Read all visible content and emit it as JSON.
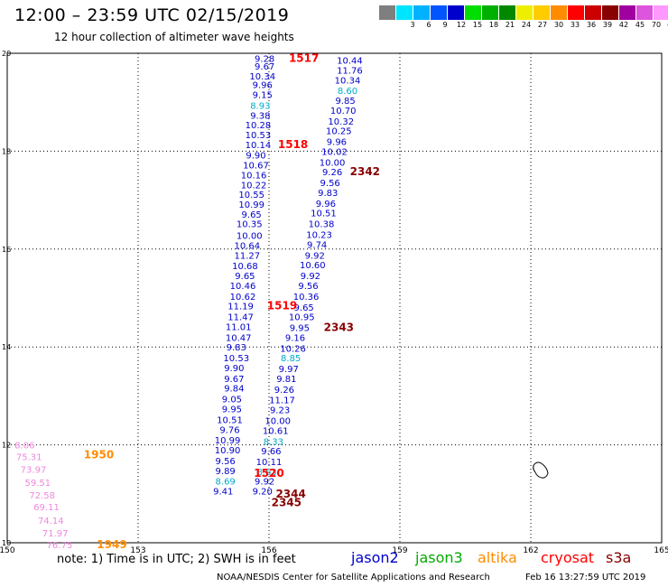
{
  "header": {
    "title": "12:00 – 23:59 UTC 02/15/2019",
    "subtitle": "12 hour collection of altimeter wave heights"
  },
  "legend": {
    "swatches": [
      {
        "color": "#7f7f7f",
        "label": ""
      },
      {
        "color": "#00e5ff",
        "label": "3"
      },
      {
        "color": "#00b2ff",
        "label": "6"
      },
      {
        "color": "#0055ff",
        "label": "9"
      },
      {
        "color": "#0000cc",
        "label": "12"
      },
      {
        "color": "#00dd00",
        "label": "15"
      },
      {
        "color": "#00b000",
        "label": "18"
      },
      {
        "color": "#008800",
        "label": "21"
      },
      {
        "color": "#eeee00",
        "label": "24"
      },
      {
        "color": "#ffcc00",
        "label": "27"
      },
      {
        "color": "#ff8c00",
        "label": "30"
      },
      {
        "color": "#ff0000",
        "label": "33"
      },
      {
        "color": "#cc0000",
        "label": "36"
      },
      {
        "color": "#880000",
        "label": "39"
      },
      {
        "color": "#a000a0",
        "label": "42"
      },
      {
        "color": "#dd55dd",
        "label": "45"
      },
      {
        "color": "#ff99ff",
        "label": "70"
      },
      {
        "color": "#000000",
        "label": "(ft)"
      }
    ]
  },
  "footer": {
    "note": "note:  1) Time is in UTC;  2) SWH is in feet",
    "credit": "NOAA/NESDIS Center for Satellite Applications and Research",
    "timestamp": "Feb 16 13:27:59 UTC 2019"
  },
  "satellites": [
    {
      "name": "jason2",
      "color": "#0000cc"
    },
    {
      "name": "jason3",
      "color": "#00aa00"
    },
    {
      "name": "altika",
      "color": "#ff8c00"
    },
    {
      "name": "cryosat",
      "color": "#ff0000"
    },
    {
      "name": "s3a",
      "color": "#880000"
    }
  ],
  "chart_data": {
    "type": "scatter",
    "xlim": [
      150,
      165
    ],
    "ylim": [
      10,
      20
    ],
    "xticks": [
      "150",
      "153",
      "156",
      "159",
      "162",
      "165"
    ],
    "yticks": [
      "10",
      "12",
      "14",
      "16",
      "18",
      "20"
    ],
    "grid": true,
    "colors": {
      "jason2": "#0000cc",
      "jason3_light": "#00aacc",
      "cryosat": "#ff0000",
      "s3a": "#880000",
      "altika": "#ff8c00",
      "pink": "#ee88dd"
    },
    "labels": [
      {
        "t": "9.28",
        "x": 155.9,
        "y": 19.9,
        "c": "jason2"
      },
      {
        "t": "9.67",
        "x": 155.9,
        "y": 19.74,
        "c": "jason2"
      },
      {
        "t": "10.34",
        "x": 155.85,
        "y": 19.54,
        "c": "jason2"
      },
      {
        "t": "9.96",
        "x": 155.85,
        "y": 19.36,
        "c": "jason2"
      },
      {
        "t": "9.15",
        "x": 155.85,
        "y": 19.16,
        "c": "jason2"
      },
      {
        "t": "8.93",
        "x": 155.8,
        "y": 18.94,
        "c": "jason3_light"
      },
      {
        "t": "9.38",
        "x": 155.8,
        "y": 18.74,
        "c": "jason2"
      },
      {
        "t": "10.28",
        "x": 155.75,
        "y": 18.54,
        "c": "jason2"
      },
      {
        "t": "10.53",
        "x": 155.75,
        "y": 18.34,
        "c": "jason2"
      },
      {
        "t": "10.14",
        "x": 155.75,
        "y": 18.14,
        "c": "jason2"
      },
      {
        "t": "9.90",
        "x": 155.7,
        "y": 17.92,
        "c": "jason2"
      },
      {
        "t": "10.67",
        "x": 155.7,
        "y": 17.72,
        "c": "jason2"
      },
      {
        "t": "10.16",
        "x": 155.65,
        "y": 17.52,
        "c": "jason2"
      },
      {
        "t": "10.22",
        "x": 155.65,
        "y": 17.32,
        "c": "jason2"
      },
      {
        "t": "10.55",
        "x": 155.6,
        "y": 17.12,
        "c": "jason2"
      },
      {
        "t": "10.99",
        "x": 155.6,
        "y": 16.92,
        "c": "jason2"
      },
      {
        "t": "9.65",
        "x": 155.6,
        "y": 16.72,
        "c": "jason2"
      },
      {
        "t": "10.35",
        "x": 155.55,
        "y": 16.52,
        "c": "jason2"
      },
      {
        "t": "10.00",
        "x": 155.55,
        "y": 16.28,
        "c": "jason2"
      },
      {
        "t": "10.64",
        "x": 155.5,
        "y": 16.08,
        "c": "jason2"
      },
      {
        "t": "11.27",
        "x": 155.5,
        "y": 15.88,
        "c": "jason2"
      },
      {
        "t": "10.68",
        "x": 155.45,
        "y": 15.66,
        "c": "jason2"
      },
      {
        "t": "9.65",
        "x": 155.45,
        "y": 15.46,
        "c": "jason2"
      },
      {
        "t": "10.46",
        "x": 155.4,
        "y": 15.26,
        "c": "jason2"
      },
      {
        "t": "10.62",
        "x": 155.4,
        "y": 15.04,
        "c": "jason2"
      },
      {
        "t": "11.19",
        "x": 155.35,
        "y": 14.84,
        "c": "jason2"
      },
      {
        "t": "11.47",
        "x": 155.35,
        "y": 14.62,
        "c": "jason2"
      },
      {
        "t": "11.01",
        "x": 155.3,
        "y": 14.42,
        "c": "jason2"
      },
      {
        "t": "10.47",
        "x": 155.3,
        "y": 14.2,
        "c": "jason2"
      },
      {
        "t": "9.83",
        "x": 155.25,
        "y": 14.0,
        "c": "jason2"
      },
      {
        "t": "10.53",
        "x": 155.25,
        "y": 13.78,
        "c": "jason2"
      },
      {
        "t": "9.90",
        "x": 155.2,
        "y": 13.58,
        "c": "jason2"
      },
      {
        "t": "9.67",
        "x": 155.2,
        "y": 13.36,
        "c": "jason2"
      },
      {
        "t": "9.84",
        "x": 155.2,
        "y": 13.16,
        "c": "jason2"
      },
      {
        "t": "9.05",
        "x": 155.15,
        "y": 12.94,
        "c": "jason2"
      },
      {
        "t": "9.95",
        "x": 155.15,
        "y": 12.74,
        "c": "jason2"
      },
      {
        "t": "10.51",
        "x": 155.1,
        "y": 12.52,
        "c": "jason2"
      },
      {
        "t": "9.76",
        "x": 155.1,
        "y": 12.32,
        "c": "jason2"
      },
      {
        "t": "10.99",
        "x": 155.05,
        "y": 12.1,
        "c": "jason2"
      },
      {
        "t": "10.90",
        "x": 155.05,
        "y": 11.9,
        "c": "jason2"
      },
      {
        "t": "9.56",
        "x": 155.0,
        "y": 11.68,
        "c": "jason2"
      },
      {
        "t": "9.89",
        "x": 155.0,
        "y": 11.48,
        "c": "jason2"
      },
      {
        "t": "8.69",
        "x": 155.0,
        "y": 11.26,
        "c": "jason3_light"
      },
      {
        "t": "9.41",
        "x": 154.95,
        "y": 11.06,
        "c": "jason2"
      },
      {
        "t": "10.44",
        "x": 157.85,
        "y": 19.86,
        "c": "jason2"
      },
      {
        "t": "11.76",
        "x": 157.85,
        "y": 19.66,
        "c": "jason2"
      },
      {
        "t": "10.34",
        "x": 157.8,
        "y": 19.46,
        "c": "jason2"
      },
      {
        "t": "8.60",
        "x": 157.8,
        "y": 19.24,
        "c": "jason3_light"
      },
      {
        "t": "9.85",
        "x": 157.75,
        "y": 19.04,
        "c": "jason2"
      },
      {
        "t": "10.70",
        "x": 157.7,
        "y": 18.84,
        "c": "jason2"
      },
      {
        "t": "10.32",
        "x": 157.65,
        "y": 18.62,
        "c": "jason2"
      },
      {
        "t": "10.25",
        "x": 157.6,
        "y": 18.42,
        "c": "jason2"
      },
      {
        "t": "9.96",
        "x": 157.55,
        "y": 18.2,
        "c": "jason2"
      },
      {
        "t": "10.02",
        "x": 157.5,
        "y": 18.0,
        "c": "jason2"
      },
      {
        "t": "10.00",
        "x": 157.45,
        "y": 17.78,
        "c": "jason2"
      },
      {
        "t": "9.26",
        "x": 157.45,
        "y": 17.58,
        "c": "jason2"
      },
      {
        "t": "9.56",
        "x": 157.4,
        "y": 17.36,
        "c": "jason2"
      },
      {
        "t": "9.83",
        "x": 157.35,
        "y": 17.16,
        "c": "jason2"
      },
      {
        "t": "9.96",
        "x": 157.3,
        "y": 16.94,
        "c": "jason2"
      },
      {
        "t": "10.51",
        "x": 157.25,
        "y": 16.74,
        "c": "jason2"
      },
      {
        "t": "10.38",
        "x": 157.2,
        "y": 16.52,
        "c": "jason2"
      },
      {
        "t": "10.23",
        "x": 157.15,
        "y": 16.3,
        "c": "jason2"
      },
      {
        "t": "9.74",
        "x": 157.1,
        "y": 16.1,
        "c": "jason2"
      },
      {
        "t": "9.92",
        "x": 157.05,
        "y": 15.88,
        "c": "jason2"
      },
      {
        "t": "10.60",
        "x": 157.0,
        "y": 15.68,
        "c": "jason2"
      },
      {
        "t": "9.92",
        "x": 156.95,
        "y": 15.46,
        "c": "jason2"
      },
      {
        "t": "9.56",
        "x": 156.9,
        "y": 15.26,
        "c": "jason2"
      },
      {
        "t": "10.36",
        "x": 156.85,
        "y": 15.04,
        "c": "jason2"
      },
      {
        "t": "9.65",
        "x": 156.8,
        "y": 14.82,
        "c": "jason2"
      },
      {
        "t": "10.95",
        "x": 156.75,
        "y": 14.62,
        "c": "jason2"
      },
      {
        "t": "9.95",
        "x": 156.7,
        "y": 14.4,
        "c": "jason2"
      },
      {
        "t": "9.16",
        "x": 156.6,
        "y": 14.2,
        "c": "jason2"
      },
      {
        "t": "10.26",
        "x": 156.55,
        "y": 13.98,
        "c": "jason2"
      },
      {
        "t": "8.85",
        "x": 156.5,
        "y": 13.78,
        "c": "jason3_light"
      },
      {
        "t": "9.97",
        "x": 156.45,
        "y": 13.56,
        "c": "jason2"
      },
      {
        "t": "9.81",
        "x": 156.4,
        "y": 13.36,
        "c": "jason2"
      },
      {
        "t": "9.26",
        "x": 156.35,
        "y": 13.14,
        "c": "jason2"
      },
      {
        "t": "11.17",
        "x": 156.3,
        "y": 12.92,
        "c": "jason2"
      },
      {
        "t": "9.23",
        "x": 156.25,
        "y": 12.72,
        "c": "jason2"
      },
      {
        "t": "10.00",
        "x": 156.2,
        "y": 12.5,
        "c": "jason2"
      },
      {
        "t": "10.61",
        "x": 156.15,
        "y": 12.3,
        "c": "jason2"
      },
      {
        "t": "8.33",
        "x": 156.1,
        "y": 12.08,
        "c": "jason3_light"
      },
      {
        "t": "9.66",
        "x": 156.05,
        "y": 11.88,
        "c": "jason2"
      },
      {
        "t": "10.11",
        "x": 156.0,
        "y": 11.66,
        "c": "jason2"
      },
      {
        "t": "8.63",
        "x": 155.95,
        "y": 11.46,
        "c": "jason3_light"
      },
      {
        "t": "9.92",
        "x": 155.9,
        "y": 11.26,
        "c": "jason2"
      },
      {
        "t": "9.20",
        "x": 155.85,
        "y": 11.06,
        "c": "jason2"
      },
      {
        "t": "1517",
        "x": 156.8,
        "y": 19.9,
        "c": "cryosat",
        "big": true
      },
      {
        "t": "1518",
        "x": 156.55,
        "y": 18.14,
        "c": "cryosat",
        "big": true
      },
      {
        "t": "1519",
        "x": 156.3,
        "y": 14.84,
        "c": "cryosat",
        "big": true
      },
      {
        "t": "1520",
        "x": 156.0,
        "y": 11.42,
        "c": "cryosat",
        "big": true
      },
      {
        "t": "2342",
        "x": 158.2,
        "y": 17.58,
        "c": "s3a",
        "big": true
      },
      {
        "t": "2343",
        "x": 157.6,
        "y": 14.4,
        "c": "s3a",
        "big": true
      },
      {
        "t": "2344",
        "x": 156.5,
        "y": 11.0,
        "c": "s3a",
        "big": true
      },
      {
        "t": "2345",
        "x": 156.4,
        "y": 10.82,
        "c": "s3a",
        "big": true
      },
      {
        "t": "8.06",
        "x": 150.4,
        "y": 12.0,
        "c": "pink"
      },
      {
        "t": "75.31",
        "x": 150.5,
        "y": 11.76,
        "c": "pink"
      },
      {
        "t": "73.97",
        "x": 150.6,
        "y": 11.5,
        "c": "pink"
      },
      {
        "t": "59.51",
        "x": 150.7,
        "y": 11.24,
        "c": "pink"
      },
      {
        "t": "72.58",
        "x": 150.8,
        "y": 10.98,
        "c": "pink"
      },
      {
        "t": "69.11",
        "x": 150.9,
        "y": 10.74,
        "c": "pink"
      },
      {
        "t": "74.14",
        "x": 151.0,
        "y": 10.46,
        "c": "pink"
      },
      {
        "t": "71.97",
        "x": 151.1,
        "y": 10.2,
        "c": "pink"
      },
      {
        "t": "76.75",
        "x": 151.2,
        "y": 9.96,
        "c": "pink"
      },
      {
        "t": "1950",
        "x": 152.1,
        "y": 11.8,
        "c": "altika",
        "big": true
      },
      {
        "t": "1949",
        "x": 152.4,
        "y": 9.96,
        "c": "altika",
        "big": true
      }
    ]
  }
}
